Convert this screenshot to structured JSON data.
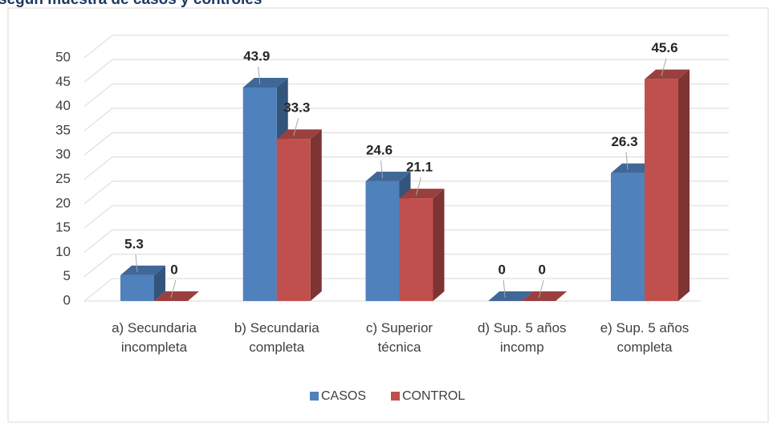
{
  "chart_data": {
    "type": "bar3d",
    "title": "según muestra de casos y controles",
    "categories": [
      [
        "a) Secundaria",
        "incompleta"
      ],
      [
        "b) Secundaria",
        "completa"
      ],
      [
        "c) Superior",
        "técnica"
      ],
      [
        "d) Sup. 5 años",
        "incomp"
      ],
      [
        "e) Sup. 5 años",
        "completa"
      ]
    ],
    "series": [
      {
        "name": "CASOS",
        "color": "#4f81bd",
        "values": [
          5.3,
          43.9,
          24.6,
          0,
          26.3
        ]
      },
      {
        "name": "CONTROL",
        "color": "#c0504d",
        "values": [
          0,
          33.3,
          21.1,
          0,
          45.6
        ]
      }
    ],
    "ylim": [
      0,
      50
    ],
    "yticks": [
      0,
      5,
      10,
      15,
      20,
      25,
      30,
      35,
      40,
      45,
      50
    ],
    "grid": true,
    "legend": "bottom"
  }
}
